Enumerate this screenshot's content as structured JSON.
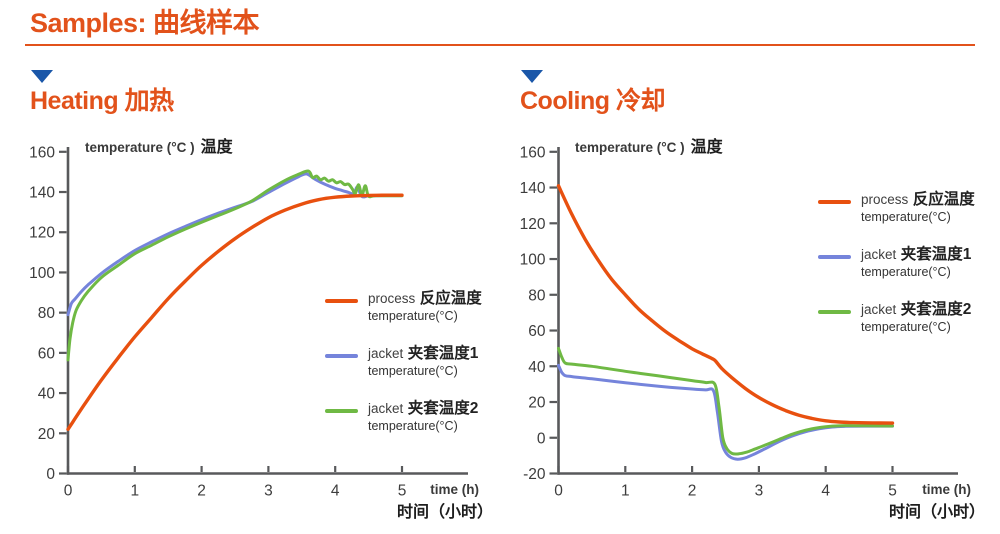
{
  "header": {
    "title": "Samples: 曲线样本",
    "accent_color": "#E2521B",
    "triangle_color": "#1A57A9",
    "axis_color": "#58595B",
    "tick_label_color": "#3D3D3D"
  },
  "chart_data": [
    {
      "id": "heating",
      "type": "line",
      "title": "Heating 加热",
      "ylabel_en": "temperature (°C )",
      "ylabel_cn": "温度",
      "xlabel_en": "time (h)",
      "xlabel_cn": "时间（小时）",
      "xlim": [
        0,
        6
      ],
      "ylim": [
        0,
        160
      ],
      "x_ticks": [
        0,
        1,
        2,
        3,
        4,
        5
      ],
      "y_ticks": [
        0,
        20,
        40,
        60,
        80,
        100,
        120,
        140,
        160
      ],
      "grid": false,
      "legend_position": "right-inside",
      "legend": [
        {
          "en": "process",
          "cn": "反应温度",
          "sub": "temperature(°C)"
        },
        {
          "en": "jacket",
          "cn": "夹套温度1",
          "sub": "temperature(°C)"
        },
        {
          "en": "jacket",
          "cn": "夹套温度2",
          "sub": "temperature(°C)"
        }
      ],
      "series": [
        {
          "name": "process 反应温度 temperature(°C)",
          "color": "#E8500F",
          "points": [
            [
              0,
              22
            ],
            [
              0.25,
              34.5
            ],
            [
              0.5,
              46.5
            ],
            [
              0.75,
              57.5
            ],
            [
              1,
              68
            ],
            [
              1.25,
              77.5
            ],
            [
              1.5,
              87
            ],
            [
              1.75,
              95.5
            ],
            [
              2,
              103.5
            ],
            [
              2.25,
              110.5
            ],
            [
              2.5,
              116.8
            ],
            [
              2.75,
              122.3
            ],
            [
              3,
              127.2
            ],
            [
              3.25,
              131
            ],
            [
              3.5,
              134
            ],
            [
              3.75,
              136.2
            ],
            [
              4,
              137.4
            ],
            [
              4.25,
              138
            ],
            [
              4.5,
              138.3
            ],
            [
              4.75,
              138.4
            ],
            [
              5,
              138.4
            ]
          ]
        },
        {
          "name": "jacket 夹套温度1 temperature(°C)",
          "color": "#7584DB",
          "points": [
            [
              0,
              79
            ],
            [
              0.05,
              84.5
            ],
            [
              0.1,
              86.6
            ],
            [
              0.2,
              90.5
            ],
            [
              0.3,
              93.8
            ],
            [
              0.5,
              99.5
            ],
            [
              0.75,
              105.5
            ],
            [
              1,
              110.9
            ],
            [
              1.25,
              115.2
            ],
            [
              1.5,
              119.2
            ],
            [
              1.75,
              122.8
            ],
            [
              2,
              126.3
            ],
            [
              2.25,
              129.5
            ],
            [
              2.5,
              132.4
            ],
            [
              2.75,
              135.3
            ],
            [
              3,
              139.8
            ],
            [
              3.25,
              144.3
            ],
            [
              3.45,
              147.6
            ],
            [
              3.57,
              149
            ],
            [
              3.7,
              146.3
            ],
            [
              3.85,
              143.8
            ],
            [
              4,
              141.8
            ],
            [
              4.1,
              140.8
            ],
            [
              4.2,
              139.8
            ],
            [
              4.28,
              139
            ],
            [
              4.33,
              142.4
            ],
            [
              4.4,
              137.8
            ],
            [
              4.5,
              138.1
            ],
            [
              4.7,
              138.2
            ],
            [
              5,
              138.2
            ]
          ]
        },
        {
          "name": "jacket 夹套温度2 temperature(°C)",
          "color": "#6FB944",
          "points": [
            [
              0,
              56.5
            ],
            [
              0.03,
              67
            ],
            [
              0.07,
              75
            ],
            [
              0.12,
              81
            ],
            [
              0.2,
              86
            ],
            [
              0.3,
              90.5
            ],
            [
              0.5,
              97.5
            ],
            [
              0.75,
              103.5
            ],
            [
              1,
              109.3
            ],
            [
              1.25,
              113.5
            ],
            [
              1.5,
              117.7
            ],
            [
              1.75,
              121.5
            ],
            [
              2,
              125
            ],
            [
              2.25,
              128.3
            ],
            [
              2.5,
              131.7
            ],
            [
              2.75,
              135.5
            ],
            [
              3,
              141
            ],
            [
              3.25,
              145.8
            ],
            [
              3.45,
              148.8
            ],
            [
              3.6,
              150.4
            ],
            [
              3.66,
              147.2
            ],
            [
              3.72,
              147.9
            ],
            [
              3.78,
              146.1
            ],
            [
              3.84,
              146.9
            ],
            [
              3.9,
              145.4
            ],
            [
              3.96,
              146.1
            ],
            [
              4.02,
              144.6
            ],
            [
              4.08,
              145.2
            ],
            [
              4.14,
              143.7
            ],
            [
              4.2,
              143.9
            ],
            [
              4.26,
              141.3
            ],
            [
              4.3,
              139.2
            ],
            [
              4.35,
              143.6
            ],
            [
              4.4,
              138.4
            ],
            [
              4.45,
              143.1
            ],
            [
              4.5,
              137.9
            ],
            [
              4.6,
              138.1
            ],
            [
              5,
              138.1
            ]
          ]
        }
      ]
    },
    {
      "id": "cooling",
      "type": "line",
      "title": "Cooling 冷却",
      "ylabel_en": "temperature (°C )",
      "ylabel_cn": "温度",
      "xlabel_en": "time (h)",
      "xlabel_cn": "时间（小时）",
      "xlim": [
        0,
        6
      ],
      "ylim": [
        -20,
        160
      ],
      "x_ticks": [
        0,
        1,
        2,
        3,
        4,
        5
      ],
      "y_ticks": [
        -20,
        0,
        20,
        40,
        60,
        80,
        100,
        120,
        140,
        160
      ],
      "grid": false,
      "legend_position": "right-inside",
      "legend": [
        {
          "en": "process",
          "cn": "反应温度",
          "sub": "temperature(°C)"
        },
        {
          "en": "jacket",
          "cn": "夹套温度1",
          "sub": "temperature(°C)"
        },
        {
          "en": "jacket",
          "cn": "夹套温度2",
          "sub": "temperature(°C)"
        }
      ],
      "series": [
        {
          "name": "process 反应温度 temperature(°C)",
          "color": "#E8500F",
          "points": [
            [
              0,
              141
            ],
            [
              0.2,
              125
            ],
            [
              0.4,
              111
            ],
            [
              0.6,
              99
            ],
            [
              0.8,
              88.5
            ],
            [
              1,
              80
            ],
            [
              1.2,
              72
            ],
            [
              1.4,
              65.5
            ],
            [
              1.6,
              59.5
            ],
            [
              1.8,
              54.5
            ],
            [
              2,
              49.8
            ],
            [
              2.15,
              47
            ],
            [
              2.3,
              44.3
            ],
            [
              2.35,
              43
            ],
            [
              2.45,
              38.5
            ],
            [
              2.6,
              33.5
            ],
            [
              2.8,
              27.5
            ],
            [
              3,
              22.5
            ],
            [
              3.2,
              18.5
            ],
            [
              3.4,
              15.2
            ],
            [
              3.6,
              12.6
            ],
            [
              3.8,
              10.8
            ],
            [
              4,
              9.5
            ],
            [
              4.2,
              8.8
            ],
            [
              4.4,
              8.5
            ],
            [
              4.7,
              8.3
            ],
            [
              5,
              8.2
            ]
          ]
        },
        {
          "name": "jacket 夹套温度1 temperature(°C)",
          "color": "#7584DB",
          "points": [
            [
              0,
              40.5
            ],
            [
              0.05,
              36.5
            ],
            [
              0.1,
              34.8
            ],
            [
              0.2,
              34.2
            ],
            [
              0.5,
              33
            ],
            [
              1,
              30.8
            ],
            [
              1.5,
              28.8
            ],
            [
              2,
              27.3
            ],
            [
              2.2,
              26.8
            ],
            [
              2.32,
              26.3
            ],
            [
              2.38,
              14
            ],
            [
              2.44,
              -2
            ],
            [
              2.5,
              -8
            ],
            [
              2.58,
              -11
            ],
            [
              2.68,
              -12
            ],
            [
              2.8,
              -11.2
            ],
            [
              2.95,
              -8.8
            ],
            [
              3.1,
              -6
            ],
            [
              3.3,
              -2.2
            ],
            [
              3.5,
              1
            ],
            [
              3.7,
              3.4
            ],
            [
              3.9,
              5
            ],
            [
              4.1,
              6
            ],
            [
              4.3,
              6.4
            ],
            [
              4.6,
              6.5
            ],
            [
              5,
              6.5
            ]
          ]
        },
        {
          "name": "jacket 夹套温度2 temperature(°C)",
          "color": "#6FB944",
          "points": [
            [
              0,
              50
            ],
            [
              0.05,
              45
            ],
            [
              0.1,
              41.8
            ],
            [
              0.2,
              41.2
            ],
            [
              0.5,
              40
            ],
            [
              1,
              37.2
            ],
            [
              1.5,
              34.6
            ],
            [
              2,
              32
            ],
            [
              2.2,
              30.9
            ],
            [
              2.34,
              30
            ],
            [
              2.4,
              18
            ],
            [
              2.46,
              0
            ],
            [
              2.52,
              -6
            ],
            [
              2.6,
              -8.8
            ],
            [
              2.7,
              -9
            ],
            [
              2.82,
              -8
            ],
            [
              2.95,
              -6.2
            ],
            [
              3.1,
              -4
            ],
            [
              3.3,
              -1
            ],
            [
              3.5,
              2
            ],
            [
              3.7,
              4.2
            ],
            [
              3.9,
              5.7
            ],
            [
              4.1,
              6.5
            ],
            [
              4.3,
              6.8
            ],
            [
              4.6,
              6.7
            ],
            [
              5,
              6.6
            ]
          ]
        }
      ]
    }
  ]
}
